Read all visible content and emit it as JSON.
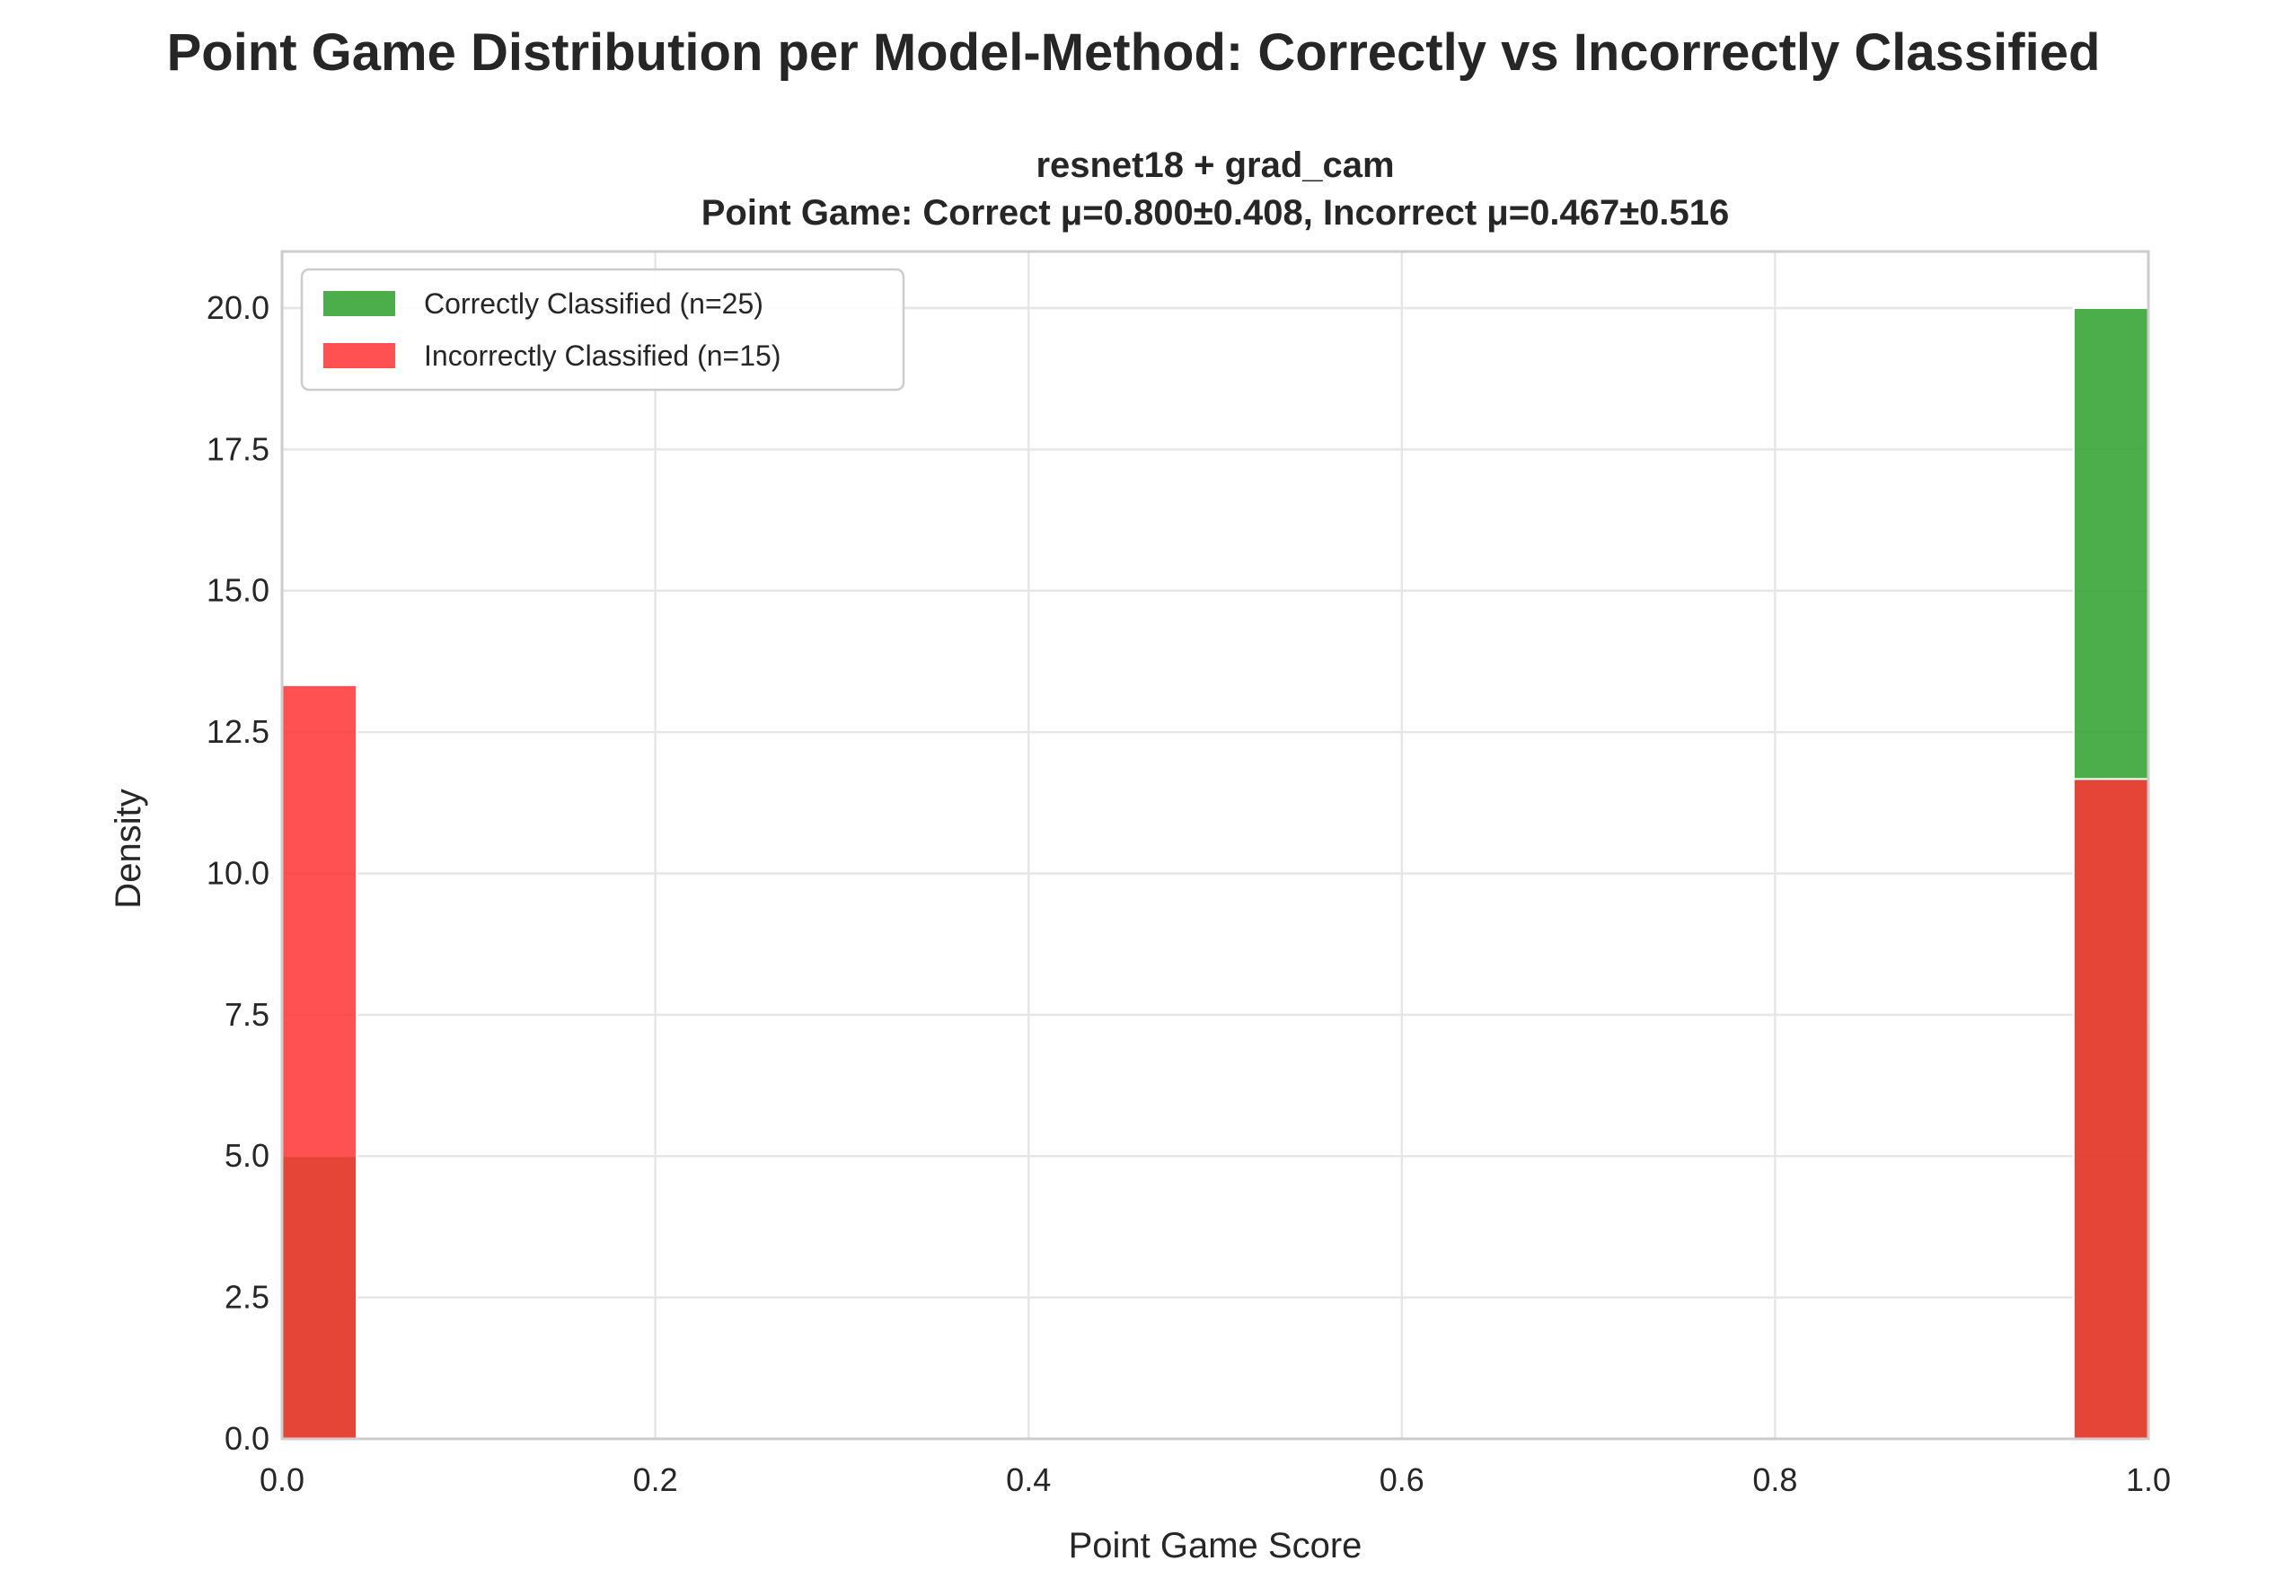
{
  "chart_data": {
    "type": "bar",
    "title": "Point Game Distribution per Model-Method: Correctly vs Incorrectly Classified",
    "subplot_title_line1": "resnet18 + grad_cam",
    "subplot_title_line2": "Point Game: Correct μ=0.800±0.408, Incorrect μ=0.467±0.516",
    "xlabel": "Point Game Score",
    "ylabel": "Density",
    "xlim": [
      0.0,
      1.0
    ],
    "ylim": [
      0,
      21
    ],
    "xticks": [
      0.0,
      0.2,
      0.4,
      0.6,
      0.8,
      1.0
    ],
    "xtick_labels": [
      "0.0",
      "0.2",
      "0.4",
      "0.6",
      "0.8",
      "1.0"
    ],
    "yticks": [
      0.0,
      2.5,
      5.0,
      7.5,
      10.0,
      12.5,
      15.0,
      17.5,
      20.0
    ],
    "ytick_labels": [
      "0.0",
      "2.5",
      "5.0",
      "7.5",
      "10.0",
      "12.5",
      "15.0",
      "17.5",
      "20.0"
    ],
    "grid": true,
    "legend_position": "upper-left",
    "overlap_color": "#c62d19",
    "series": [
      {
        "name": "Correctly Classified (n=25)",
        "color": "#2ca02c",
        "bins": [
          {
            "x0": 0.0,
            "x1": 0.04,
            "value": 5.0
          },
          {
            "x0": 0.96,
            "x1": 1.0,
            "value": 20.0
          }
        ]
      },
      {
        "name": "Incorrectly Classified (n=15)",
        "color": "#ff3333",
        "bins": [
          {
            "x0": 0.0,
            "x1": 0.04,
            "value": 13.33
          },
          {
            "x0": 0.96,
            "x1": 1.0,
            "value": 11.67
          }
        ]
      }
    ]
  }
}
